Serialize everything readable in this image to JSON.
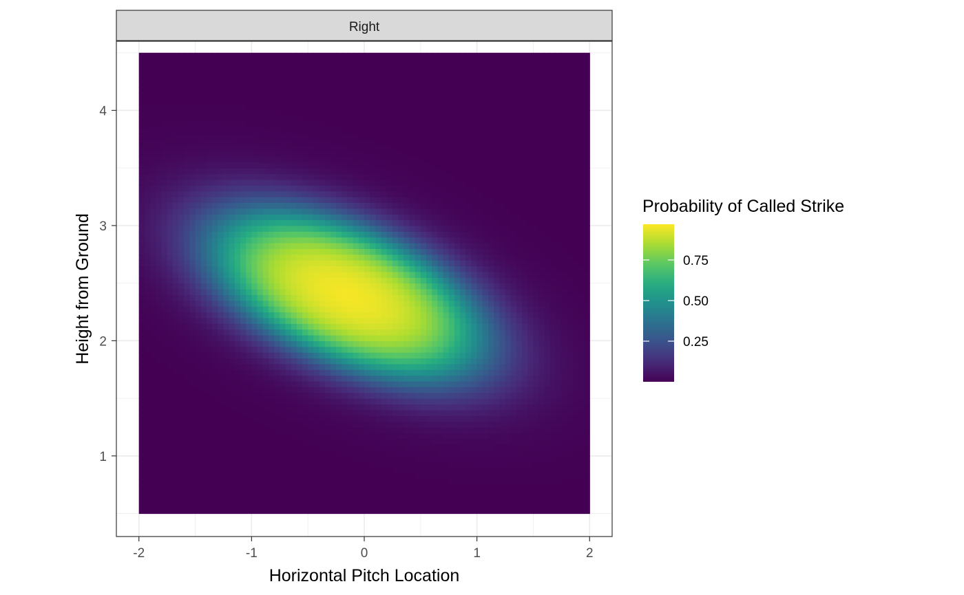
{
  "chart_data": {
    "type": "heatmap",
    "facet_label": "Right",
    "xlabel": "Horizontal Pitch Location",
    "ylabel": "Height from Ground",
    "xlim": [
      -2.2,
      2.2
    ],
    "ylim": [
      0.3,
      4.6
    ],
    "x_ticks": [
      -2,
      -1,
      0,
      1,
      2
    ],
    "x_tick_labels": [
      "-2",
      "-1",
      "0",
      "1",
      "2"
    ],
    "y_ticks": [
      1,
      2,
      3,
      4
    ],
    "y_tick_labels": [
      "1",
      "2",
      "3",
      "4"
    ],
    "grid": true,
    "tile_extent": {
      "x": [
        -2,
        2
      ],
      "y": [
        0.5,
        4.5
      ]
    },
    "grid_resolution": {
      "nx": 80,
      "ny": 80
    },
    "surface": {
      "peak_x": -0.15,
      "peak_y": 2.4,
      "peak_value": 0.97,
      "tilt": -0.32,
      "inner_x_radius": 1.12,
      "inner_y_radius": 0.58,
      "falloff_width": 0.22
    },
    "legend": {
      "title": "Probability of Called Strike",
      "position": "right",
      "range": [
        0,
        0.97
      ],
      "breaks": [
        0.25,
        0.5,
        0.75
      ],
      "break_labels": [
        "0.25",
        "0.50",
        "0.75"
      ],
      "colormap": "viridis"
    }
  }
}
